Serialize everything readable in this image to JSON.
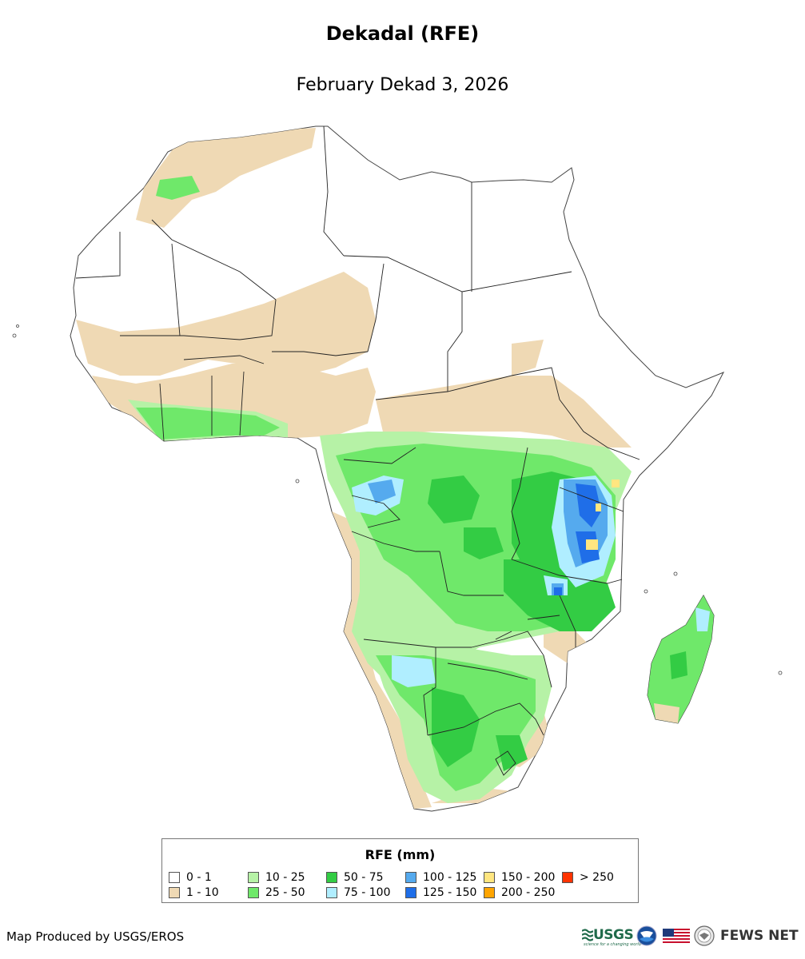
{
  "title": "Dekadal (RFE)",
  "subtitle": "February Dekad 3, 2026",
  "legend": {
    "title": "RFE (mm)",
    "items": [
      {
        "label": "0 - 1",
        "color": "#ffffff"
      },
      {
        "label": "1 - 10",
        "color": "#efd9b4"
      },
      {
        "label": "10 - 25",
        "color": "#b6f2a6"
      },
      {
        "label": "25 - 50",
        "color": "#6fe86a"
      },
      {
        "label": "50 - 75",
        "color": "#33cc44"
      },
      {
        "label": "75 - 100",
        "color": "#b0eeff"
      },
      {
        "label": "100 - 125",
        "color": "#55aaee"
      },
      {
        "label": "125 - 150",
        "color": "#1f6ee8"
      },
      {
        "label": "150 - 200",
        "color": "#ffe680"
      },
      {
        "label": "200 - 250",
        "color": "#ffa500"
      },
      {
        "label": "> 250",
        "color": "#ff3300"
      }
    ]
  },
  "credit": "Map Produced by USGS/EROS",
  "logos": {
    "usgs": "USGS",
    "usgs_tagline": "science for a changing world",
    "fewsnet": "FEWS NET"
  },
  "icons": {
    "noaa": "noaa-logo-icon",
    "flag": "us-flag-icon",
    "seal": "state-department-seal-icon"
  }
}
